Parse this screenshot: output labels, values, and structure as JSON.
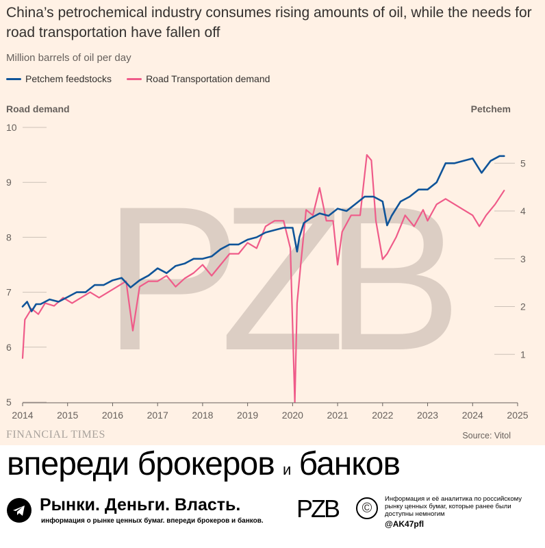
{
  "chart_data": {
    "type": "line",
    "title": "China’s petrochemical industry consumes rising amounts of oil, while the needs for road transportation have fallen off",
    "subtitle": "Million barrels of oil per day",
    "left_axis_title": "Road demand",
    "right_axis_title": "Petchem",
    "left_ylim": [
      5,
      10
    ],
    "right_ylim": [
      0,
      5.75
    ],
    "xlim": [
      2014,
      2025
    ],
    "left_ticks": [
      "10",
      "9",
      "8",
      "7",
      "6",
      "5"
    ],
    "left_tick_values": [
      10,
      9,
      8,
      7,
      6,
      5
    ],
    "right_ticks": [
      "5",
      "4",
      "3",
      "2",
      "1"
    ],
    "right_tick_values": [
      5,
      4,
      3,
      2,
      1
    ],
    "x_ticks": [
      "2014",
      "2015",
      "2016",
      "2017",
      "2018",
      "2019",
      "2020",
      "2021",
      "2022",
      "2023",
      "2024",
      "2025"
    ],
    "x_tick_values": [
      2014,
      2015,
      2016,
      2017,
      2018,
      2019,
      2020,
      2021,
      2022,
      2023,
      2024,
      2025
    ],
    "grid": true,
    "series": [
      {
        "name": "Petchem feedstocks",
        "axis": "right",
        "color": "#0f5499",
        "x": [
          2014.0,
          2014.1,
          2014.2,
          2014.3,
          2014.4,
          2014.6,
          2014.8,
          2015.0,
          2015.2,
          2015.4,
          2015.6,
          2015.8,
          2016.0,
          2016.2,
          2016.4,
          2016.6,
          2016.8,
          2017.0,
          2017.2,
          2017.4,
          2017.6,
          2017.8,
          2018.0,
          2018.2,
          2018.4,
          2018.6,
          2018.8,
          2019.0,
          2019.2,
          2019.4,
          2019.6,
          2019.8,
          2020.0,
          2020.1,
          2020.15,
          2020.25,
          2020.4,
          2020.6,
          2020.8,
          2021.0,
          2021.2,
          2021.4,
          2021.6,
          2021.8,
          2022.0,
          2022.1,
          2022.2,
          2022.4,
          2022.6,
          2022.8,
          2023.0,
          2023.2,
          2023.4,
          2023.6,
          2023.8,
          2024.0,
          2024.2,
          2024.4,
          2024.6,
          2024.7
        ],
        "values": [
          2.0,
          2.1,
          1.9,
          2.05,
          2.05,
          2.15,
          2.1,
          2.2,
          2.3,
          2.3,
          2.45,
          2.45,
          2.55,
          2.6,
          2.4,
          2.55,
          2.65,
          2.8,
          2.7,
          2.85,
          2.9,
          3.0,
          3.0,
          3.05,
          3.2,
          3.3,
          3.3,
          3.4,
          3.45,
          3.55,
          3.6,
          3.65,
          3.65,
          3.15,
          3.45,
          3.75,
          3.85,
          3.95,
          3.9,
          4.05,
          4.0,
          4.15,
          4.3,
          4.3,
          4.2,
          3.7,
          3.9,
          4.2,
          4.3,
          4.45,
          4.45,
          4.6,
          5.0,
          5.0,
          5.05,
          5.1,
          4.8,
          5.05,
          5.15,
          5.15
        ]
      },
      {
        "name": "Road Transportation demand",
        "axis": "left",
        "color": "#ef5b89",
        "x": [
          2014.0,
          2014.05,
          2014.2,
          2014.35,
          2014.5,
          2014.7,
          2014.9,
          2015.1,
          2015.3,
          2015.5,
          2015.7,
          2015.9,
          2016.1,
          2016.3,
          2016.45,
          2016.6,
          2016.8,
          2017.0,
          2017.2,
          2017.4,
          2017.6,
          2017.8,
          2018.0,
          2018.2,
          2018.4,
          2018.6,
          2018.8,
          2019.0,
          2019.2,
          2019.4,
          2019.6,
          2019.8,
          2019.95,
          2020.05,
          2020.1,
          2020.18,
          2020.3,
          2020.45,
          2020.6,
          2020.75,
          2020.9,
          2021.0,
          2021.1,
          2021.3,
          2021.5,
          2021.65,
          2021.75,
          2021.85,
          2022.0,
          2022.1,
          2022.3,
          2022.5,
          2022.7,
          2022.9,
          2023.0,
          2023.2,
          2023.4,
          2023.6,
          2023.8,
          2024.0,
          2024.15,
          2024.3,
          2024.5,
          2024.7
        ],
        "values": [
          5.8,
          6.5,
          6.7,
          6.6,
          6.8,
          6.75,
          6.9,
          6.8,
          6.9,
          7.0,
          6.9,
          7.0,
          7.1,
          7.2,
          6.3,
          7.1,
          7.2,
          7.2,
          7.3,
          7.1,
          7.25,
          7.35,
          7.5,
          7.3,
          7.5,
          7.7,
          7.7,
          7.9,
          7.8,
          8.2,
          8.3,
          8.3,
          7.8,
          5.0,
          6.8,
          7.5,
          8.5,
          8.4,
          8.9,
          8.3,
          8.3,
          7.5,
          8.1,
          8.4,
          8.4,
          9.5,
          9.4,
          8.3,
          7.6,
          7.7,
          8.0,
          8.4,
          8.2,
          8.5,
          8.3,
          8.6,
          8.7,
          8.6,
          8.5,
          8.4,
          8.2,
          8.4,
          8.6,
          8.85
        ]
      }
    ]
  },
  "legend": {
    "petchem_label": "Petchem feedstocks",
    "road_label": "Road Transportation demand"
  },
  "footer": {
    "logo": "FINANCIAL TIMES",
    "source": "Source: Vitol"
  },
  "watermark": {
    "text": "PZB"
  },
  "banner": {
    "slogan_part1": "впереди брокеров",
    "slogan_and": "и",
    "slogan_part2": "банков",
    "brand": "Рынки. Деньги. Власть.",
    "brand_sub": "информация о рынке ценных бумаг. впереди брокеров и банков.",
    "logo_text": "PZB",
    "copyright_symbol": "©",
    "info": "Информация и её аналитика по российскому рынку ценных бумаг, которые ранее были доступны немногим",
    "handle": "@AK47pfl"
  }
}
